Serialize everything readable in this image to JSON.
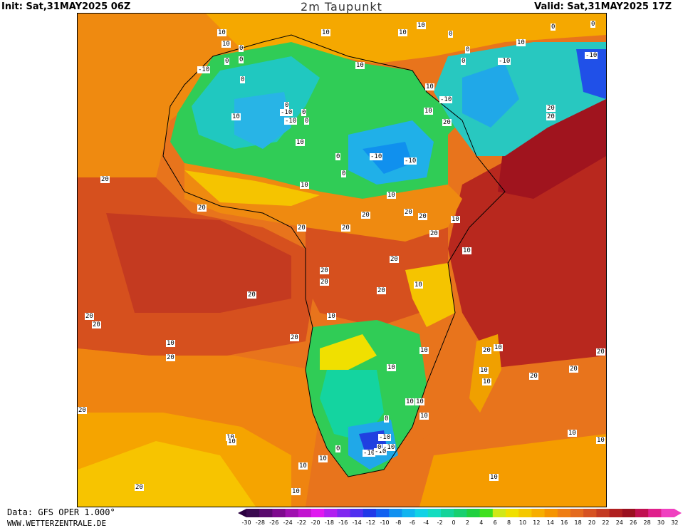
{
  "header": {
    "init": "Init: Sat,31MAY2025 06Z",
    "title": "2m Taupunkt",
    "valid": "Valid: Sat,31MAY2025 17Z"
  },
  "footer": {
    "source": "Data: GFS OPER 1.000°",
    "site": "WWW.WETTERZENTRALE.DE"
  },
  "colorbar": {
    "ticks": [
      "-30",
      "-28",
      "-26",
      "-24",
      "-22",
      "-20",
      "-18",
      "-16",
      "-14",
      "-12",
      "-10",
      "-8",
      "-6",
      "-4",
      "-2",
      "0",
      "2",
      "4",
      "6",
      "8",
      "10",
      "12",
      "14",
      "16",
      "18",
      "20",
      "22",
      "24",
      "26",
      "28",
      "30",
      "32"
    ],
    "colors": [
      "#3a0a50",
      "#5a0a6e",
      "#7e0a8e",
      "#a010b0",
      "#c214d0",
      "#e018f0",
      "#b020f0",
      "#8028f0",
      "#5030f0",
      "#2038e8",
      "#1060f0",
      "#1090f0",
      "#10b4f0",
      "#10d2e6",
      "#14dcc0",
      "#14d49a",
      "#18d070",
      "#20d040",
      "#40e020",
      "#d0e818",
      "#f0e000",
      "#f5c800",
      "#f7ae00",
      "#f59400",
      "#ef7e14",
      "#e46a1e",
      "#d65222",
      "#c43a22",
      "#b02020",
      "#9a1020",
      "#c01050",
      "#e0208c",
      "#f040c0"
    ],
    "left_arrow": "#2a0040",
    "right_arrow": "#f040c0"
  },
  "map": {
    "labels": [
      {
        "t": "10"
      },
      {
        "t": "10"
      },
      {
        "t": "10"
      },
      {
        "t": "10"
      },
      {
        "t": "10"
      },
      {
        "t": "0"
      },
      {
        "t": "0"
      },
      {
        "t": "0"
      },
      {
        "t": "0"
      },
      {
        "t": "10"
      },
      {
        "t": "-10"
      },
      {
        "t": "0"
      },
      {
        "t": "10"
      },
      {
        "t": "0"
      },
      {
        "t": "10"
      },
      {
        "t": "-10"
      },
      {
        "t": "-10"
      },
      {
        "t": "0"
      },
      {
        "t": "10"
      },
      {
        "t": "20"
      },
      {
        "t": "-10"
      },
      {
        "t": "-10"
      },
      {
        "t": "0"
      },
      {
        "t": "0"
      },
      {
        "t": "-10"
      },
      {
        "t": "0"
      },
      {
        "t": "0"
      },
      {
        "t": "10"
      },
      {
        "t": "0"
      },
      {
        "t": "0"
      },
      {
        "t": "20"
      },
      {
        "t": "20"
      },
      {
        "t": "10"
      },
      {
        "t": "10"
      },
      {
        "t": "-10"
      },
      {
        "t": "-10"
      },
      {
        "t": "0"
      },
      {
        "t": "10"
      },
      {
        "t": "20"
      },
      {
        "t": "20"
      },
      {
        "t": "20"
      },
      {
        "t": "20"
      },
      {
        "t": "20"
      },
      {
        "t": "10"
      },
      {
        "t": "20"
      },
      {
        "t": "20"
      },
      {
        "t": "20"
      },
      {
        "t": "10"
      },
      {
        "t": "20"
      },
      {
        "t": "20"
      },
      {
        "t": "10"
      },
      {
        "t": "20"
      },
      {
        "t": "20"
      },
      {
        "t": "20"
      },
      {
        "t": "20"
      },
      {
        "t": "10"
      },
      {
        "t": "20"
      },
      {
        "t": "10"
      },
      {
        "t": "10"
      },
      {
        "t": "20"
      },
      {
        "t": "10"
      },
      {
        "t": "20"
      },
      {
        "t": "20"
      },
      {
        "t": "20"
      },
      {
        "t": "10"
      },
      {
        "t": "10"
      },
      {
        "t": "0"
      },
      {
        "t": "-10"
      },
      {
        "t": "-10"
      },
      {
        "t": "-10"
      },
      {
        "t": "0"
      },
      {
        "t": "10"
      },
      {
        "t": "10"
      },
      {
        "t": "10"
      },
      {
        "t": "10"
      },
      {
        "t": "10"
      },
      {
        "t": "10"
      },
      {
        "t": "10"
      },
      {
        "t": "10"
      },
      {
        "t": "10"
      },
      {
        "t": "10"
      },
      {
        "t": "20"
      },
      {
        "t": "-10"
      },
      {
        "t": "0"
      },
      {
        "t": "20"
      },
      {
        "t": "20"
      },
      {
        "t": "10"
      },
      {
        "t": "20"
      },
      {
        "t": "10"
      }
    ]
  }
}
